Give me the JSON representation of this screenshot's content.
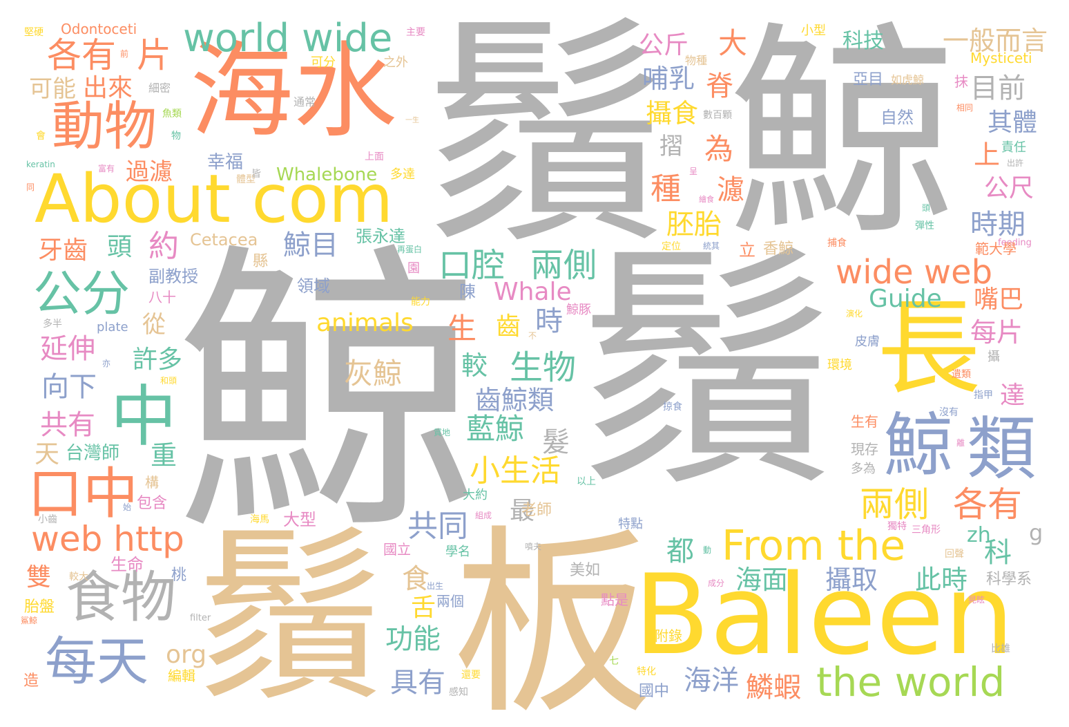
{
  "palette": {
    "gray": "#b2b2b2",
    "orange": "#fc8d62",
    "tan": "#e5c494",
    "yellow": "#ffd92f",
    "green": "#66c2a5",
    "blue": "#8da0cb",
    "pink": "#e78ac3",
    "lime": "#a6d854"
  },
  "words": [
    {
      "text": "鯨",
      "color": "gray"
    },
    {
      "text": "鬚",
      "color": "gray"
    },
    {
      "text": "鬚",
      "color": "gray"
    },
    {
      "text": "鯨",
      "color": "gray"
    },
    {
      "text": "鬚",
      "color": "tan"
    },
    {
      "text": "板",
      "color": "tan"
    },
    {
      "text": "Baleen",
      "color": "yellow"
    },
    {
      "text": "海水",
      "color": "orange"
    },
    {
      "text": "About com",
      "color": "yellow"
    },
    {
      "text": "長",
      "color": "yellow"
    },
    {
      "text": "鯨",
      "color": "blue"
    },
    {
      "text": "類",
      "color": "blue"
    },
    {
      "text": "中",
      "color": "green"
    },
    {
      "text": "口中",
      "color": "orange"
    },
    {
      "text": "食物",
      "color": "gray"
    },
    {
      "text": "每天",
      "color": "blue"
    },
    {
      "text": "動物",
      "color": "orange"
    },
    {
      "text": "公分",
      "color": "green"
    },
    {
      "text": "world wide",
      "color": "green"
    },
    {
      "text": "From the",
      "color": "yellow"
    },
    {
      "text": "the world",
      "color": "lime"
    },
    {
      "text": "web http",
      "color": "orange"
    },
    {
      "text": "wide web",
      "color": "orange"
    },
    {
      "text": "各有",
      "color": "orange"
    },
    {
      "text": "片",
      "color": "orange"
    },
    {
      "text": "口腔",
      "color": "green"
    },
    {
      "text": "兩側",
      "color": "green"
    },
    {
      "text": "兩側",
      "color": "yellow"
    },
    {
      "text": "各有",
      "color": "orange"
    },
    {
      "text": "生物",
      "color": "green"
    },
    {
      "text": "灰鯨",
      "color": "tan"
    },
    {
      "text": "藍鯨",
      "color": "green"
    },
    {
      "text": "小生活",
      "color": "yellow"
    },
    {
      "text": "共同",
      "color": "blue"
    },
    {
      "text": "海洋",
      "color": "blue"
    },
    {
      "text": "鱗蝦",
      "color": "orange"
    },
    {
      "text": "海面",
      "color": "green"
    },
    {
      "text": "攝取",
      "color": "blue"
    },
    {
      "text": "此時",
      "color": "green"
    },
    {
      "text": "animals",
      "color": "yellow"
    },
    {
      "text": "Whale",
      "color": "pink"
    },
    {
      "text": "Guide",
      "color": "green"
    },
    {
      "text": "Whalebone",
      "color": "lime"
    },
    {
      "text": "Cetacea",
      "color": "tan"
    },
    {
      "text": "Odontoceti",
      "color": "orange"
    },
    {
      "text": "Mysticeti",
      "color": "yellow"
    },
    {
      "text": "org",
      "color": "tan"
    },
    {
      "text": "zh",
      "color": "green"
    },
    {
      "text": "g",
      "color": "gray"
    },
    {
      "text": "plate",
      "color": "blue"
    },
    {
      "text": "keratin",
      "color": "green"
    },
    {
      "text": "filter",
      "color": "gray"
    },
    {
      "text": "feeding",
      "color": "pink"
    },
    {
      "text": "出來",
      "color": "orange"
    },
    {
      "text": "可能",
      "color": "tan"
    },
    {
      "text": "過濾",
      "color": "orange"
    },
    {
      "text": "約",
      "color": "pink"
    },
    {
      "text": "頭",
      "color": "green"
    },
    {
      "text": "牙齒",
      "color": "orange"
    },
    {
      "text": "延伸",
      "color": "pink"
    },
    {
      "text": "向下",
      "color": "blue"
    },
    {
      "text": "共有",
      "color": "pink"
    },
    {
      "text": "天",
      "color": "tan"
    },
    {
      "text": "台灣師",
      "color": "green"
    },
    {
      "text": "重",
      "color": "green"
    },
    {
      "text": "許多",
      "color": "green"
    },
    {
      "text": "從",
      "color": "tan"
    },
    {
      "text": "公斤",
      "color": "pink"
    },
    {
      "text": "大",
      "color": "orange"
    },
    {
      "text": "哺乳",
      "color": "blue"
    },
    {
      "text": "攝食",
      "color": "yellow"
    },
    {
      "text": "脊",
      "color": "orange"
    },
    {
      "text": "為",
      "color": "orange"
    },
    {
      "text": "種",
      "color": "orange"
    },
    {
      "text": "濾",
      "color": "orange"
    },
    {
      "text": "胚胎",
      "color": "yellow"
    },
    {
      "text": "鯨目",
      "color": "blue"
    },
    {
      "text": "生",
      "color": "orange"
    },
    {
      "text": "齒",
      "color": "yellow"
    },
    {
      "text": "時",
      "color": "blue"
    },
    {
      "text": "較",
      "color": "green"
    },
    {
      "text": "齒鯨類",
      "color": "blue"
    },
    {
      "text": "髮",
      "color": "gray"
    },
    {
      "text": "最",
      "color": "gray"
    },
    {
      "text": "具有",
      "color": "blue"
    },
    {
      "text": "功能",
      "color": "green"
    },
    {
      "text": "舌",
      "color": "yellow"
    },
    {
      "text": "食",
      "color": "tan"
    },
    {
      "text": "都",
      "color": "green"
    },
    {
      "text": "一般而言",
      "color": "tan"
    },
    {
      "text": "科技",
      "color": "green"
    },
    {
      "text": "目前",
      "color": "gray"
    },
    {
      "text": "其體",
      "color": "blue"
    },
    {
      "text": "上",
      "color": "orange"
    },
    {
      "text": "公尺",
      "color": "pink"
    },
    {
      "text": "時期",
      "color": "blue"
    },
    {
      "text": "嘴巴",
      "color": "orange"
    },
    {
      "text": "每片",
      "color": "pink"
    },
    {
      "text": "達",
      "color": "pink"
    },
    {
      "text": "科",
      "color": "green"
    },
    {
      "text": "幸福",
      "color": "blue"
    },
    {
      "text": "摺",
      "color": "gray"
    },
    {
      "text": "張永達",
      "color": "green"
    },
    {
      "text": "領域",
      "color": "blue"
    },
    {
      "text": "副教授",
      "color": "blue"
    },
    {
      "text": "八十",
      "color": "pink"
    },
    {
      "text": "陳",
      "color": "blue"
    },
    {
      "text": "立",
      "color": "orange"
    },
    {
      "text": "香鯨",
      "color": "tan"
    },
    {
      "text": "雙",
      "color": "orange"
    },
    {
      "text": "生命",
      "color": "pink"
    },
    {
      "text": "胎盤",
      "color": "yellow"
    },
    {
      "text": "包含",
      "color": "pink"
    },
    {
      "text": "大型",
      "color": "pink"
    },
    {
      "text": "老師",
      "color": "tan"
    },
    {
      "text": "美如",
      "color": "gray"
    },
    {
      "text": "國立",
      "color": "pink"
    },
    {
      "text": "學名",
      "color": "green"
    },
    {
      "text": "兩個",
      "color": "blue"
    },
    {
      "text": "點是",
      "color": "pink"
    },
    {
      "text": "國中",
      "color": "blue"
    },
    {
      "text": "附錄",
      "color": "yellow"
    },
    {
      "text": "特點",
      "color": "blue"
    },
    {
      "text": "大約",
      "color": "green"
    },
    {
      "text": "現存",
      "color": "gray"
    },
    {
      "text": "多為",
      "color": "gray"
    },
    {
      "text": "生有",
      "color": "orange"
    },
    {
      "text": "科學系",
      "color": "gray"
    },
    {
      "text": "皮膚",
      "color": "blue"
    },
    {
      "text": "環境",
      "color": "yellow"
    },
    {
      "text": "自然",
      "color": "blue"
    },
    {
      "text": "亞目",
      "color": "blue"
    },
    {
      "text": "如虎鯨",
      "color": "tan"
    },
    {
      "text": "抹",
      "color": "pink"
    },
    {
      "text": "責任",
      "color": "green"
    },
    {
      "text": "範大學",
      "color": "orange"
    },
    {
      "text": "鯨豚",
      "color": "pink"
    },
    {
      "text": "縣",
      "color": "tan"
    },
    {
      "text": "構",
      "color": "tan"
    },
    {
      "text": "桃",
      "color": "blue"
    },
    {
      "text": "造",
      "color": "orange"
    },
    {
      "text": "編輯",
      "color": "yellow"
    },
    {
      "text": "小型",
      "color": "yellow"
    },
    {
      "text": "主要",
      "color": "pink"
    },
    {
      "text": "可分",
      "color": "yellow"
    },
    {
      "text": "之外",
      "color": "tan"
    },
    {
      "text": "細密",
      "color": "gray"
    },
    {
      "text": "通常",
      "color": "gray"
    },
    {
      "text": "數百顆",
      "color": "gray"
    },
    {
      "text": "物種",
      "color": "tan"
    },
    {
      "text": "多達",
      "color": "yellow"
    },
    {
      "text": "堅硬",
      "color": "yellow"
    },
    {
      "text": "魚類",
      "color": "lime"
    },
    {
      "text": "能力",
      "color": "yellow"
    },
    {
      "text": "捕食",
      "color": "orange"
    },
    {
      "text": "定位",
      "color": "yellow"
    },
    {
      "text": "體型",
      "color": "tan"
    },
    {
      "text": "皆",
      "color": "gray"
    },
    {
      "text": "多半",
      "color": "gray"
    },
    {
      "text": "小齒",
      "color": "gray"
    },
    {
      "text": "較大",
      "color": "tan"
    },
    {
      "text": "感知",
      "color": "gray"
    },
    {
      "text": "還要",
      "color": "yellow"
    },
    {
      "text": "七",
      "color": "lime"
    },
    {
      "text": "比雄",
      "color": "gray"
    },
    {
      "text": "指甲",
      "color": "blue"
    },
    {
      "text": "沒有",
      "color": "blue"
    },
    {
      "text": "回聲",
      "color": "tan"
    },
    {
      "text": "獨特",
      "color": "pink"
    },
    {
      "text": "三角形",
      "color": "pink"
    },
    {
      "text": "以上",
      "color": "green"
    },
    {
      "text": "掠食",
      "color": "blue"
    },
    {
      "text": "彈性",
      "color": "green"
    },
    {
      "text": "遺類",
      "color": "orange"
    },
    {
      "text": "攝",
      "color": "gray"
    },
    {
      "text": "海馬",
      "color": "yellow"
    },
    {
      "text": "上面",
      "color": "pink"
    },
    {
      "text": "一生",
      "color": "tan"
    },
    {
      "text": "相同",
      "color": "orange"
    },
    {
      "text": "出許",
      "color": "gray"
    },
    {
      "text": "富有",
      "color": "pink"
    },
    {
      "text": "會",
      "color": "yellow"
    },
    {
      "text": "物",
      "color": "green"
    },
    {
      "text": "同",
      "color": "orange"
    },
    {
      "text": "和頭",
      "color": "yellow"
    },
    {
      "text": "亦",
      "color": "blue"
    },
    {
      "text": "成分",
      "color": "pink"
    },
    {
      "text": "晃眩",
      "color": "pink"
    },
    {
      "text": "動",
      "color": "green"
    },
    {
      "text": "組成",
      "color": "pink"
    },
    {
      "text": "再蛋白",
      "color": "green"
    },
    {
      "text": "統其",
      "color": "blue"
    },
    {
      "text": "呈",
      "color": "pink"
    },
    {
      "text": "繪食",
      "color": "pink"
    },
    {
      "text": "頭",
      "color": "green"
    },
    {
      "text": "離",
      "color": "pink"
    },
    {
      "text": "特化",
      "color": "yellow"
    },
    {
      "text": "質地",
      "color": "green"
    },
    {
      "text": "鯊鯨",
      "color": "orange"
    },
    {
      "text": "噴夫",
      "color": "gray"
    },
    {
      "text": "不",
      "color": "tan"
    },
    {
      "text": "園",
      "color": "pink"
    },
    {
      "text": "始",
      "color": "blue"
    },
    {
      "text": "出生",
      "color": "blue"
    },
    {
      "text": "前",
      "color": "orange"
    },
    {
      "text": "演化",
      "color": "yellow"
    }
  ]
}
